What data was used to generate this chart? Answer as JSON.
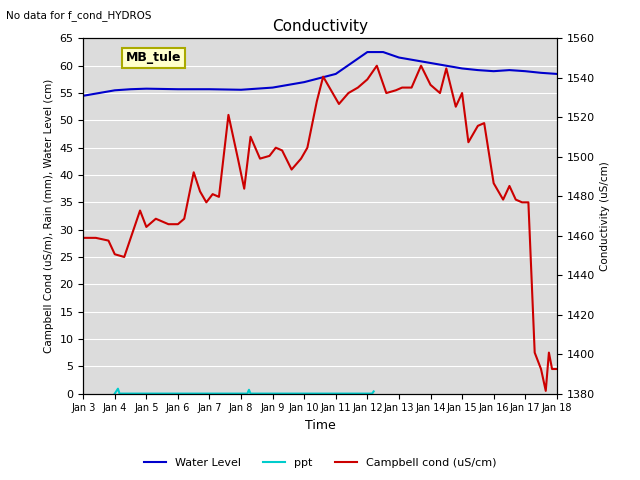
{
  "title": "Conductivity",
  "top_left_text": "No data for f_cond_HYDROS",
  "xlabel": "Time",
  "ylabel_left": "Campbell Cond (uS/m), Rain (mm), Water Level (cm)",
  "ylabel_right": "Conductivity (uS/cm)",
  "ylim_left": [
    0,
    65
  ],
  "ylim_right": [
    1380,
    1560
  ],
  "plot_bg_color": "#dcdcdc",
  "annotation_box": {
    "text": "MB_tule",
    "facecolor": "#ffffcc",
    "edgecolor": "#aaaa00"
  },
  "xtick_labels": [
    "Jan 3",
    "Jan 4",
    "Jan 5",
    "Jan 6",
    "Jan 7",
    "Jan 8",
    "Jan 9",
    "Jan 10",
    "Jan 11",
    "Jan 12",
    "Jan 13",
    "Jan 14",
    "Jan 15",
    "Jan 16",
    "Jan 17",
    "Jan 18"
  ],
  "water_level_x": [
    0,
    1,
    1.5,
    2,
    3,
    4,
    5,
    5.5,
    6,
    6.5,
    7,
    8,
    9,
    9.5,
    10,
    10.5,
    11,
    11.5,
    12,
    12.5,
    13,
    13.5,
    14,
    14.5,
    15
  ],
  "water_level_y": [
    54.5,
    55.5,
    55.7,
    55.8,
    55.7,
    55.7,
    55.6,
    55.8,
    56.0,
    56.5,
    57.0,
    58.5,
    62.5,
    62.5,
    61.5,
    61.0,
    60.5,
    60.0,
    59.5,
    59.2,
    59.0,
    59.2,
    59.0,
    58.7,
    58.5
  ],
  "water_level_color": "#0000cc",
  "ppt_x": [
    1.0,
    1.1,
    1.15,
    5.2,
    5.25,
    5.3,
    9.15,
    9.2
  ],
  "ppt_y": [
    0.0,
    0.9,
    0.0,
    0.0,
    0.7,
    0.0,
    0.0,
    0.4
  ],
  "ppt_color": "#00cccc",
  "campbell_x": [
    0,
    0.4,
    0.8,
    1.0,
    1.3,
    1.8,
    2.0,
    2.3,
    2.7,
    3.0,
    3.2,
    3.5,
    3.7,
    3.9,
    4.1,
    4.3,
    4.6,
    4.9,
    5.1,
    5.3,
    5.6,
    5.9,
    6.1,
    6.3,
    6.6,
    6.9,
    7.1,
    7.4,
    7.6,
    7.9,
    8.1,
    8.4,
    8.7,
    9.0,
    9.3,
    9.6,
    9.9,
    10.1,
    10.4,
    10.7,
    11.0,
    11.3,
    11.5,
    11.8,
    12.0,
    12.2,
    12.5,
    12.7,
    13.0,
    13.3,
    13.5,
    13.7,
    13.9,
    14.1,
    14.3,
    14.5,
    14.65,
    14.75,
    14.85,
    14.95,
    15.0
  ],
  "campbell_y": [
    28.5,
    28.5,
    28.0,
    25.5,
    25.0,
    33.5,
    30.5,
    32.0,
    31.0,
    31.0,
    32.0,
    40.5,
    37.0,
    35.0,
    36.5,
    36.0,
    51.0,
    43.0,
    37.5,
    47.0,
    43.0,
    43.5,
    45.0,
    44.5,
    41.0,
    43.0,
    45.0,
    53.5,
    58.0,
    55.0,
    53.0,
    55.0,
    56.0,
    57.5,
    60.0,
    55.0,
    55.5,
    56.0,
    56.0,
    60.0,
    56.5,
    55.0,
    59.5,
    52.5,
    55.0,
    46.0,
    49.0,
    49.5,
    38.5,
    35.5,
    38.0,
    35.5,
    35.0,
    35.0,
    7.5,
    4.5,
    0.5,
    7.5,
    4.5,
    4.5,
    4.5
  ],
  "campbell_color": "#cc0000",
  "legend_labels": [
    "Water Level",
    "ppt",
    "Campbell cond (uS/cm)"
  ],
  "legend_colors": [
    "#0000cc",
    "#00cccc",
    "#cc0000"
  ]
}
